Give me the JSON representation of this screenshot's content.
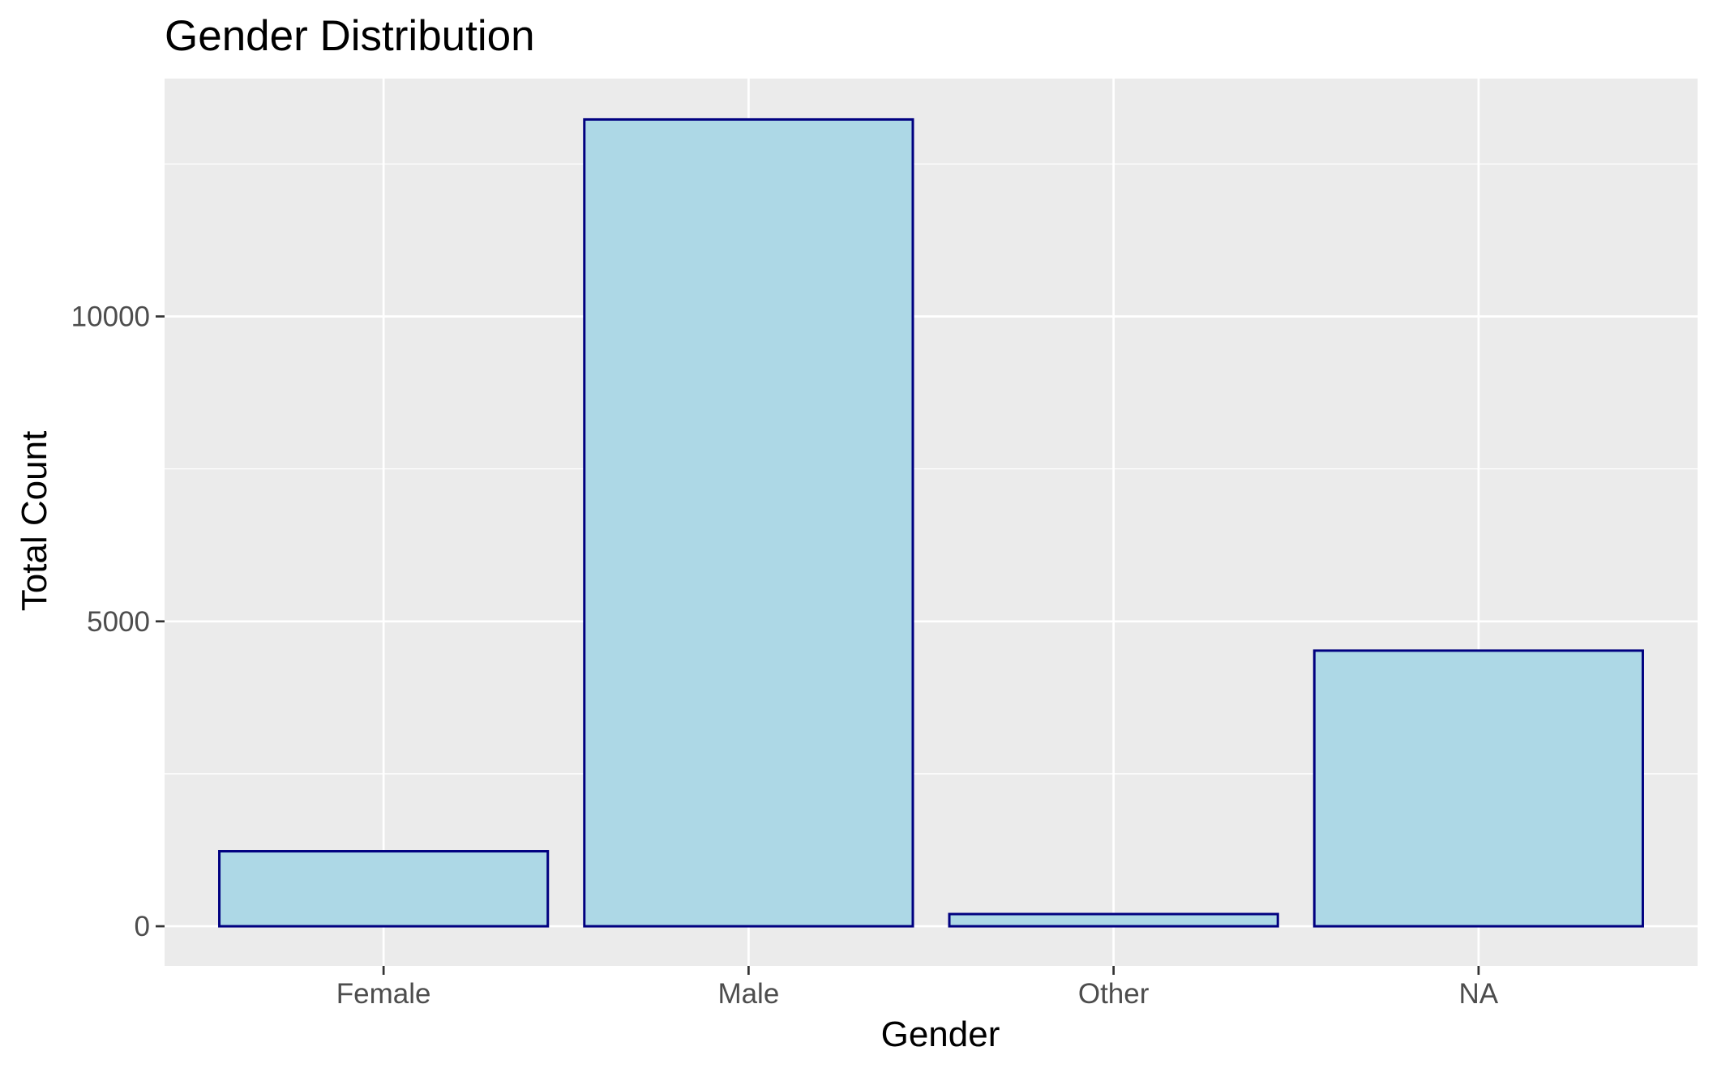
{
  "chart_data": {
    "type": "bar",
    "title": "Gender Distribution",
    "xlabel": "Gender",
    "ylabel": "Total Count",
    "categories": [
      "Female",
      "Male",
      "Other",
      "NA"
    ],
    "values": [
      1230,
      13230,
      200,
      4520
    ],
    "ylim": [
      -650,
      13900
    ],
    "yticks": [
      0,
      5000,
      10000
    ],
    "ytick_labels": [
      "0",
      "5000",
      "10000"
    ],
    "grid": true,
    "legend": "none",
    "colors": {
      "bar_fill": "#add8e6",
      "bar_outline": "#000080",
      "panel_background": "#ebebeb",
      "grid": "#ffffff"
    }
  }
}
